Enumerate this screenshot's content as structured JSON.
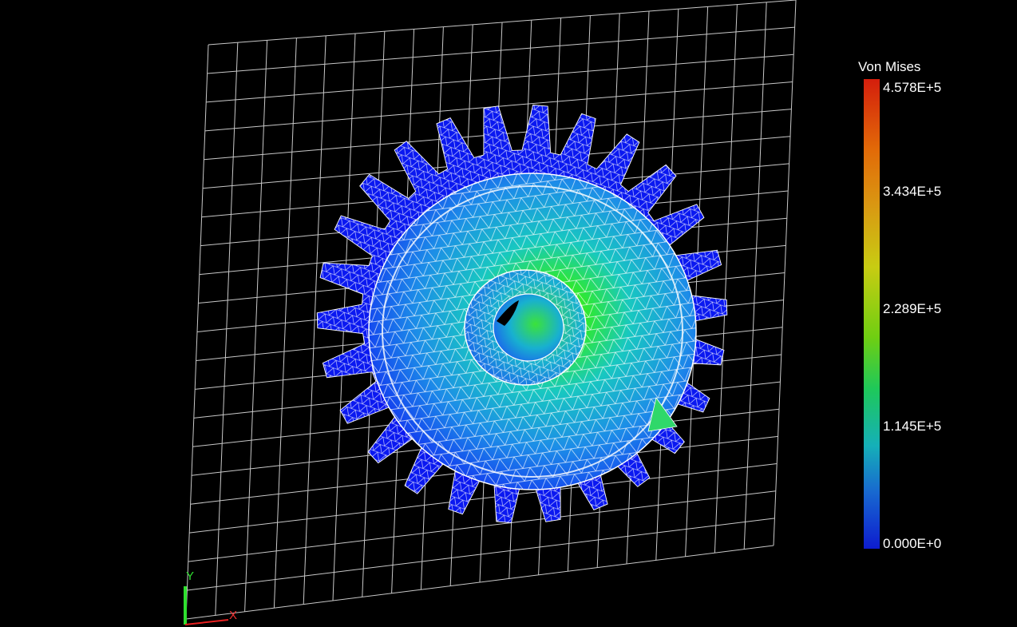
{
  "legend": {
    "title": "Von Mises",
    "ticks": [
      "4.578E+5",
      "3.434E+5",
      "2.289E+5",
      "1.145E+5",
      "0.000E+0"
    ],
    "colors": {
      "max": "#d41e0c",
      "upper": "#d99812",
      "mid": "#6fcf12",
      "lower": "#15b0b8",
      "min": "#0d1ccf"
    }
  },
  "axes": {
    "x": "X",
    "y": "Y"
  },
  "scene": {
    "model": "gear",
    "teeth": 26,
    "mesh_color": "#ffffff",
    "tooth_color": "#0a18f0",
    "grid_color": "#c8c8c8"
  }
}
